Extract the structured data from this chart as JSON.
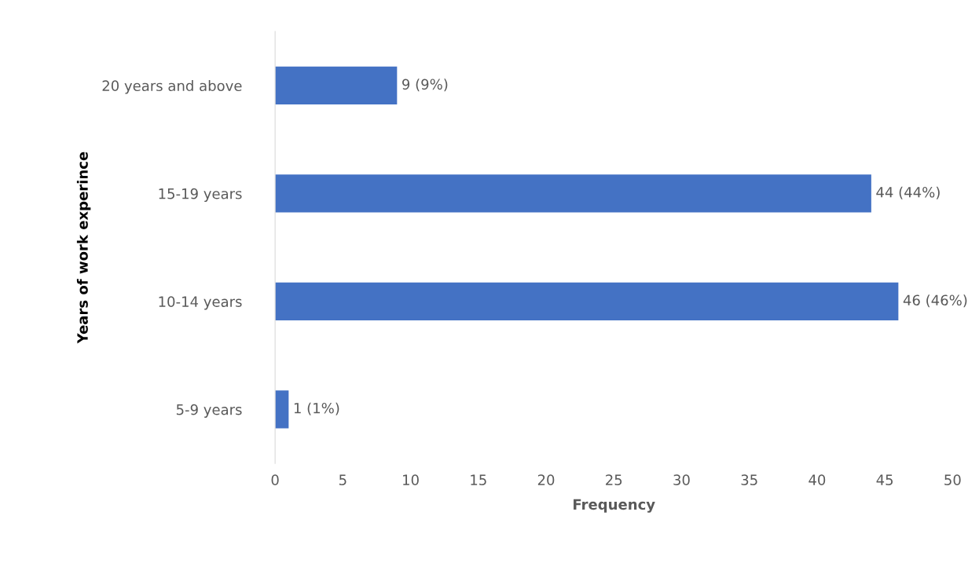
{
  "chart_data": {
    "type": "bar",
    "orientation": "horizontal",
    "categories": [
      "20 years and above",
      "15-19 years",
      "10-14 years",
      "5-9 years"
    ],
    "values": [
      9,
      44,
      46,
      1
    ],
    "value_labels": [
      "9 (9%)",
      "44 (44%)",
      "46 (46%)",
      "1 (1%)"
    ],
    "color": "#4472c4",
    "xlabel": "Frequency",
    "ylabel": "Years of work experince",
    "xlim": [
      0,
      50
    ],
    "xticks": [
      0,
      5,
      10,
      15,
      20,
      25,
      30,
      35,
      40,
      45,
      50
    ],
    "grid": false
  }
}
